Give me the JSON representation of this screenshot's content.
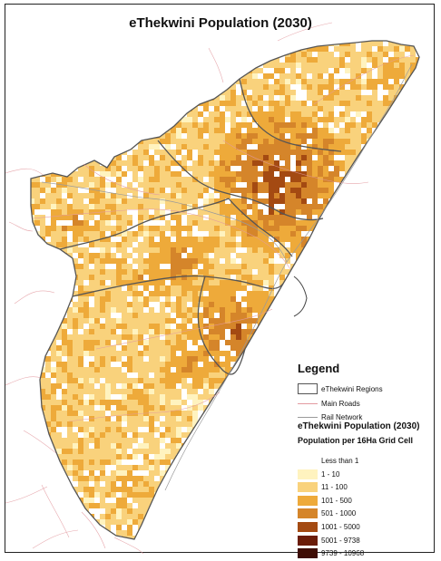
{
  "map": {
    "title": "eThekwini Population (2030)",
    "colors": {
      "background": "#ffffff",
      "region_border": "#555555",
      "main_roads": "#e39aa0",
      "rail": "#9a9a9a",
      "sea": "#ffffff"
    }
  },
  "legend": {
    "title": "Legend",
    "items": [
      {
        "label": "eThekwini Regions",
        "kind": "region-border",
        "color": "#555555"
      },
      {
        "label": "Main Roads",
        "kind": "line",
        "color": "#e39aa0"
      },
      {
        "label": "Rail Network",
        "kind": "line",
        "color": "#9a9a9a"
      }
    ],
    "population_title": "eThekwini Population (2030)",
    "population_subtitle": "Population per 16Ha Grid Cell",
    "classes": [
      {
        "label": "Less than 1",
        "color": "#ffffff"
      },
      {
        "label": "1 - 10",
        "color": "#fff3bf"
      },
      {
        "label": "11 - 100",
        "color": "#f9d27c"
      },
      {
        "label": "101 - 500",
        "color": "#eeaa3a"
      },
      {
        "label": "501 - 1000",
        "color": "#d5852a"
      },
      {
        "label": "1001 - 5000",
        "color": "#a44a12"
      },
      {
        "label": "5001 - 9738",
        "color": "#6b1d09"
      },
      {
        "label": "9739 - 10968",
        "color": "#3e0d05"
      }
    ]
  }
}
